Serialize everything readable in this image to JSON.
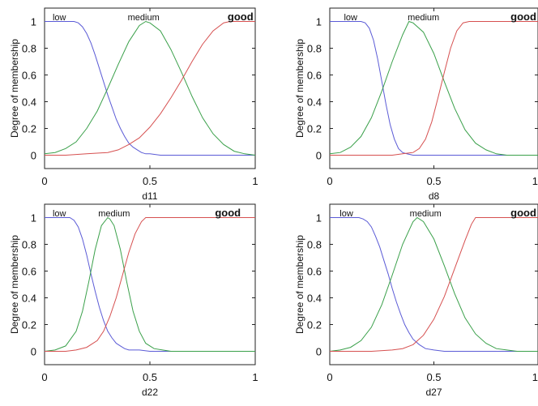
{
  "chart_data": [
    {
      "type": "line",
      "xlabel": "d11",
      "ylabel": "Degree of membership",
      "xlim": [
        0,
        1
      ],
      "ylim": [
        -0.1,
        1.1
      ],
      "xticks": [
        0,
        0.5,
        1
      ],
      "xtick_labels": [
        "0",
        "0.5",
        "1"
      ],
      "yticks": [
        0,
        0.2,
        0.4,
        0.6,
        0.8,
        1
      ],
      "ytick_labels": [
        "0",
        "0.2",
        "0.4",
        "0.6",
        "0.8",
        "1"
      ],
      "grid": false,
      "series": [
        {
          "name": "low",
          "color": "#5b5bd6",
          "x": [
            0,
            0.05,
            0.1,
            0.12,
            0.14,
            0.16,
            0.18,
            0.2,
            0.22,
            0.24,
            0.26,
            0.28,
            0.3,
            0.32,
            0.34,
            0.36,
            0.38,
            0.4,
            0.42,
            0.44,
            0.46,
            0.48,
            0.5,
            0.55,
            0.6,
            0.7,
            0.8,
            0.9,
            1
          ],
          "y": [
            1,
            1,
            1,
            1,
            1,
            0.99,
            0.96,
            0.91,
            0.84,
            0.75,
            0.65,
            0.55,
            0.45,
            0.36,
            0.27,
            0.2,
            0.14,
            0.09,
            0.06,
            0.04,
            0.02,
            0.01,
            0.01,
            0,
            0,
            0,
            0,
            0,
            0
          ]
        },
        {
          "name": "medium",
          "color": "#3aa04a",
          "x": [
            0,
            0.05,
            0.1,
            0.15,
            0.2,
            0.25,
            0.3,
            0.35,
            0.4,
            0.45,
            0.48,
            0.5,
            0.55,
            0.6,
            0.65,
            0.7,
            0.75,
            0.8,
            0.85,
            0.9,
            0.95,
            1
          ],
          "y": [
            0.01,
            0.02,
            0.05,
            0.1,
            0.2,
            0.33,
            0.5,
            0.68,
            0.85,
            0.97,
            1,
            0.99,
            0.93,
            0.79,
            0.62,
            0.44,
            0.28,
            0.16,
            0.08,
            0.03,
            0.01,
            0
          ]
        },
        {
          "name": "good",
          "color": "#d65050",
          "x": [
            0,
            0.1,
            0.2,
            0.3,
            0.35,
            0.4,
            0.45,
            0.5,
            0.55,
            0.6,
            0.65,
            0.7,
            0.75,
            0.8,
            0.85,
            0.88,
            0.9,
            0.95,
            1
          ],
          "y": [
            0,
            0,
            0.01,
            0.02,
            0.04,
            0.08,
            0.13,
            0.21,
            0.31,
            0.43,
            0.56,
            0.7,
            0.83,
            0.93,
            0.99,
            1,
            1,
            1,
            1
          ]
        }
      ]
    },
    {
      "type": "line",
      "xlabel": "d8",
      "ylabel": "Degree of membership",
      "xlim": [
        0,
        1
      ],
      "ylim": [
        -0.1,
        1.1
      ],
      "xticks": [
        0,
        0.5,
        1
      ],
      "xtick_labels": [
        "0",
        "0.5",
        "1"
      ],
      "yticks": [
        0,
        0.2,
        0.4,
        0.6,
        0.8,
        1
      ],
      "ytick_labels": [
        "0",
        "0.2",
        "0.4",
        "0.6",
        "0.8",
        "1"
      ],
      "grid": false,
      "series": [
        {
          "name": "low",
          "color": "#5b5bd6",
          "x": [
            0,
            0.05,
            0.1,
            0.15,
            0.17,
            0.19,
            0.21,
            0.23,
            0.25,
            0.27,
            0.29,
            0.31,
            0.33,
            0.35,
            0.37,
            0.4,
            0.45,
            0.5,
            1
          ],
          "y": [
            1,
            1,
            1,
            1,
            0.99,
            0.95,
            0.86,
            0.72,
            0.55,
            0.38,
            0.23,
            0.12,
            0.05,
            0.02,
            0.01,
            0,
            0,
            0,
            0
          ]
        },
        {
          "name": "medium",
          "color": "#3aa04a",
          "x": [
            0,
            0.05,
            0.1,
            0.15,
            0.2,
            0.25,
            0.3,
            0.35,
            0.38,
            0.4,
            0.45,
            0.5,
            0.55,
            0.6,
            0.65,
            0.7,
            0.75,
            0.8,
            0.85,
            0.9,
            1
          ],
          "y": [
            0.01,
            0.02,
            0.06,
            0.14,
            0.28,
            0.48,
            0.7,
            0.9,
            1,
            0.99,
            0.92,
            0.76,
            0.55,
            0.35,
            0.19,
            0.09,
            0.04,
            0.01,
            0,
            0,
            0
          ]
        },
        {
          "name": "good",
          "color": "#d65050",
          "x": [
            0,
            0.3,
            0.35,
            0.4,
            0.43,
            0.46,
            0.49,
            0.52,
            0.55,
            0.58,
            0.61,
            0.64,
            0.67,
            0.7,
            1
          ],
          "y": [
            0,
            0,
            0.01,
            0.02,
            0.05,
            0.12,
            0.25,
            0.43,
            0.62,
            0.8,
            0.93,
            0.99,
            1,
            1,
            1
          ]
        }
      ]
    },
    {
      "type": "line",
      "xlabel": "d22",
      "ylabel": "Degree of membership",
      "xlim": [
        0,
        1
      ],
      "ylim": [
        -0.1,
        1.1
      ],
      "xticks": [
        0,
        0.5,
        1
      ],
      "xtick_labels": [
        "0",
        "0.5",
        "1"
      ],
      "yticks": [
        0,
        0.2,
        0.4,
        0.6,
        0.8,
        1
      ],
      "ytick_labels": [
        "0",
        "0.2",
        "0.4",
        "0.6",
        "0.8",
        "1"
      ],
      "grid": false,
      "series": [
        {
          "name": "low",
          "color": "#5b5bd6",
          "x": [
            0,
            0.05,
            0.1,
            0.12,
            0.14,
            0.16,
            0.18,
            0.2,
            0.22,
            0.24,
            0.26,
            0.28,
            0.3,
            0.32,
            0.34,
            0.36,
            0.38,
            0.4,
            0.45,
            0.5,
            0.55,
            0.6,
            1
          ],
          "y": [
            1,
            1,
            1,
            1,
            0.98,
            0.93,
            0.84,
            0.72,
            0.58,
            0.45,
            0.33,
            0.23,
            0.15,
            0.1,
            0.06,
            0.04,
            0.02,
            0.01,
            0.01,
            0,
            0,
            0,
            0
          ]
        },
        {
          "name": "medium",
          "color": "#3aa04a",
          "x": [
            0,
            0.05,
            0.1,
            0.15,
            0.18,
            0.21,
            0.24,
            0.27,
            0.3,
            0.31,
            0.33,
            0.36,
            0.39,
            0.42,
            0.45,
            0.48,
            0.52,
            0.56,
            0.6,
            1
          ],
          "y": [
            0,
            0.01,
            0.04,
            0.15,
            0.3,
            0.52,
            0.76,
            0.94,
            1,
            0.99,
            0.94,
            0.76,
            0.52,
            0.3,
            0.15,
            0.06,
            0.02,
            0.01,
            0,
            0
          ]
        },
        {
          "name": "good",
          "color": "#d65050",
          "x": [
            0,
            0.1,
            0.15,
            0.2,
            0.25,
            0.28,
            0.31,
            0.34,
            0.37,
            0.4,
            0.43,
            0.46,
            0.48,
            0.5,
            1
          ],
          "y": [
            0,
            0,
            0.01,
            0.03,
            0.08,
            0.15,
            0.26,
            0.4,
            0.57,
            0.74,
            0.88,
            0.97,
            1,
            1,
            1
          ]
        }
      ]
    },
    {
      "type": "line",
      "xlabel": "d27",
      "ylabel": "Degree of membership",
      "xlim": [
        0,
        1
      ],
      "ylim": [
        -0.1,
        1.1
      ],
      "xticks": [
        0,
        0.5,
        1
      ],
      "xtick_labels": [
        "0",
        "0.5",
        "1"
      ],
      "yticks": [
        0,
        0.2,
        0.4,
        0.6,
        0.8,
        1
      ],
      "ytick_labels": [
        "0",
        "0.2",
        "0.4",
        "0.6",
        "0.8",
        "1"
      ],
      "grid": false,
      "series": [
        {
          "name": "low",
          "color": "#5b5bd6",
          "x": [
            0,
            0.05,
            0.1,
            0.14,
            0.16,
            0.18,
            0.2,
            0.22,
            0.24,
            0.26,
            0.28,
            0.3,
            0.32,
            0.34,
            0.36,
            0.38,
            0.4,
            0.43,
            0.46,
            0.5,
            0.55,
            0.6,
            0.7,
            1
          ],
          "y": [
            1,
            1,
            1,
            1,
            0.99,
            0.97,
            0.93,
            0.86,
            0.78,
            0.68,
            0.58,
            0.47,
            0.37,
            0.28,
            0.2,
            0.14,
            0.09,
            0.05,
            0.02,
            0.01,
            0,
            0,
            0,
            0
          ]
        },
        {
          "name": "medium",
          "color": "#3aa04a",
          "x": [
            0,
            0.05,
            0.1,
            0.15,
            0.2,
            0.25,
            0.3,
            0.35,
            0.4,
            0.42,
            0.45,
            0.5,
            0.55,
            0.6,
            0.65,
            0.7,
            0.75,
            0.8,
            0.85,
            0.9,
            1
          ],
          "y": [
            0,
            0.01,
            0.03,
            0.08,
            0.18,
            0.35,
            0.57,
            0.8,
            0.97,
            1,
            0.97,
            0.84,
            0.64,
            0.43,
            0.25,
            0.13,
            0.06,
            0.02,
            0.01,
            0,
            0
          ]
        },
        {
          "name": "good",
          "color": "#d65050",
          "x": [
            0,
            0.2,
            0.3,
            0.35,
            0.4,
            0.45,
            0.5,
            0.55,
            0.6,
            0.65,
            0.68,
            0.7,
            1
          ],
          "y": [
            0,
            0,
            0.01,
            0.02,
            0.05,
            0.12,
            0.24,
            0.41,
            0.62,
            0.83,
            0.95,
            1,
            1
          ]
        }
      ]
    }
  ]
}
